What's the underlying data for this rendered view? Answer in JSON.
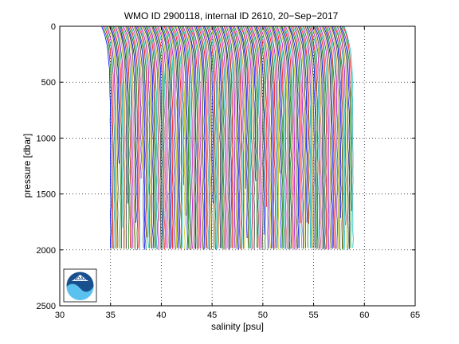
{
  "chart_data": {
    "type": "line",
    "title": "WMO ID 2900118, internal ID 2610, 20−Sep−2017",
    "xlabel": "salinity [psu]",
    "ylabel": "pressure [dbar]",
    "xlim": [
      30,
      65
    ],
    "ylim": [
      0,
      2500
    ],
    "y_reversed": true,
    "grid": "dotted",
    "x_ticks": [
      "30",
      "35",
      "40",
      "45",
      "50",
      "55",
      "60",
      "65"
    ],
    "y_ticks": [
      "0",
      "500",
      "1000",
      "1500",
      "2000",
      "2500"
    ],
    "profiles": {
      "count": 200,
      "offset_step": 0.12,
      "first_surface_salinity": 34.5,
      "max_depth_dbar": 2000,
      "colors": [
        "#0000ff",
        "#008000",
        "#ff0000",
        "#00bfbf",
        "#bf00bf",
        "#bfbf00",
        "#404040"
      ]
    }
  },
  "logo": {
    "name": "noaa-logo",
    "text": "NOAA"
  }
}
